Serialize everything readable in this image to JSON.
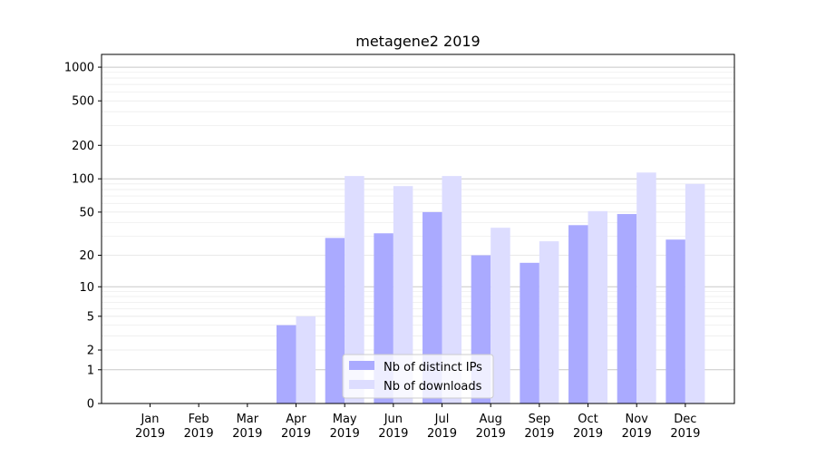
{
  "chart_data": {
    "type": "bar",
    "title": "metagene2 2019",
    "xlabel": "",
    "ylabel": "",
    "yscale": "symlog",
    "ylim": [
      0,
      1300
    ],
    "y_ticks": [
      0,
      1,
      2,
      5,
      10,
      20,
      50,
      100,
      200,
      500,
      1000
    ],
    "categories": [
      {
        "month": "Jan",
        "year": "2019"
      },
      {
        "month": "Feb",
        "year": "2019"
      },
      {
        "month": "Mar",
        "year": "2019"
      },
      {
        "month": "Apr",
        "year": "2019"
      },
      {
        "month": "May",
        "year": "2019"
      },
      {
        "month": "Jun",
        "year": "2019"
      },
      {
        "month": "Jul",
        "year": "2019"
      },
      {
        "month": "Aug",
        "year": "2019"
      },
      {
        "month": "Sep",
        "year": "2019"
      },
      {
        "month": "Oct",
        "year": "2019"
      },
      {
        "month": "Nov",
        "year": "2019"
      },
      {
        "month": "Dec",
        "year": "2019"
      }
    ],
    "series": [
      {
        "name": "Nb of distinct IPs",
        "color": "#aaaaff",
        "values": [
          0,
          0,
          0,
          4,
          29,
          32,
          50,
          20,
          17,
          38,
          48,
          28
        ]
      },
      {
        "name": "Nb of downloads",
        "color": "#ddddff",
        "values": [
          0,
          0,
          0,
          5,
          106,
          86,
          106,
          36,
          27,
          51,
          114,
          90
        ]
      }
    ],
    "grid": true,
    "legend": "lower-center"
  }
}
